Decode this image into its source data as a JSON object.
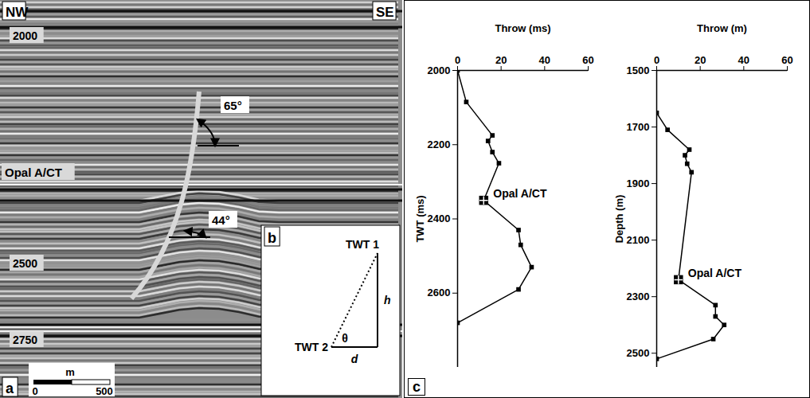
{
  "panel_a": {
    "letter": "a",
    "direction_left": "NW",
    "direction_right": "SE",
    "depth_labels": [
      "2000",
      "2500",
      "2750"
    ],
    "horizon_label": "Opal A/CT",
    "dip_angles": [
      "65°",
      "44°"
    ],
    "scale_bar": {
      "unit": "m",
      "labels": [
        "0",
        "500"
      ]
    }
  },
  "panel_b": {
    "letter": "b",
    "top_label": "TWT 1",
    "bottom_label": "TWT 2",
    "vertical_side": "h",
    "horizontal_side": "d",
    "angle": "θ"
  },
  "panel_c": {
    "letter": "c"
  },
  "chart_data": [
    {
      "type": "line",
      "x_label": "Throw (ms)",
      "y_label": "TWT (ms)",
      "xlim": [
        0,
        60
      ],
      "xticks": [
        0,
        20,
        40,
        60
      ],
      "ylim": [
        2000,
        2800
      ],
      "yticks": [
        2000,
        2200,
        2400,
        2600
      ],
      "x": [
        0,
        4,
        16,
        14,
        16,
        19,
        12,
        28,
        29,
        34,
        28,
        0
      ],
      "y": [
        2000,
        2085,
        2175,
        2190,
        2220,
        2250,
        2350,
        2430,
        2470,
        2530,
        2590,
        2680
      ],
      "color": "#000000",
      "marker": "square",
      "annotations": [
        {
          "text": "Opal A/CT",
          "x": 12,
          "y": 2350
        }
      ]
    },
    {
      "type": "line",
      "x_label": "Throw (m)",
      "y_label": "Depth (m)",
      "xlim": [
        0,
        60
      ],
      "xticks": [
        0,
        20,
        40,
        60
      ],
      "ylim": [
        1500,
        2550
      ],
      "yticks": [
        1500,
        1700,
        1900,
        2100,
        2300,
        2500
      ],
      "x": [
        0,
        5,
        15,
        13,
        14,
        16,
        10,
        27,
        27,
        31,
        26,
        0
      ],
      "y": [
        1650,
        1710,
        1780,
        1800,
        1830,
        1860,
        2240,
        2330,
        2370,
        2400,
        2450,
        2520
      ],
      "color": "#000000",
      "marker": "square",
      "annotations": [
        {
          "text": "Opal A/CT",
          "x": 10,
          "y": 2240
        }
      ]
    }
  ]
}
